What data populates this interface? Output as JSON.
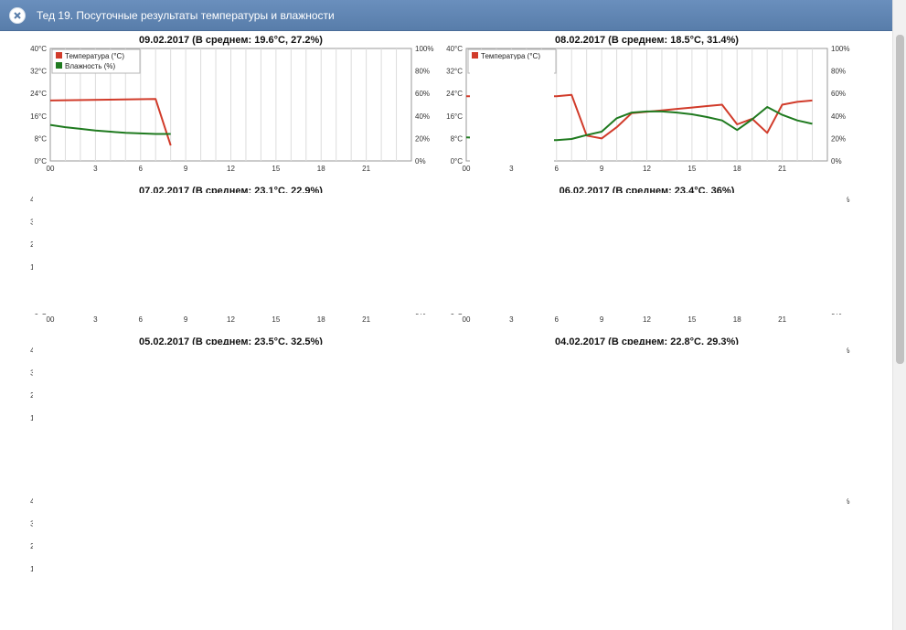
{
  "window": {
    "title": "Тед 19. Посуточные результаты температуры и влажности"
  },
  "colors": {
    "temperature": "#d13b2a",
    "humidity": "#1f7a1f",
    "titlebar": "#6a8fbd"
  },
  "legend": {
    "temperature_label": "Температура (°C)",
    "humidity_label": "Влажность (%)"
  },
  "axes": {
    "x_ticks": [
      "00",
      "3",
      "6",
      "9",
      "12",
      "15",
      "18",
      "21"
    ],
    "y_left_ticks": [
      "0°C",
      "8°C",
      "16°C",
      "24°C",
      "32°C",
      "40°C"
    ],
    "y_right_ticks": [
      "0%",
      "20%",
      "40%",
      "60%",
      "80%",
      "100%"
    ]
  },
  "chart_data": [
    {
      "type": "line",
      "title": "09.02.2017 (В среднем: 19.6°C, 27.2%)",
      "xlim": [
        0,
        24
      ],
      "ylim": [
        0,
        40
      ],
      "y2lim": [
        0,
        100
      ],
      "grid": true,
      "legend_position": "top-left",
      "series": [
        {
          "name": "Температура (°C)",
          "axis": "left",
          "x": [
            0,
            7,
            8
          ],
          "y": [
            21.5,
            22,
            5.5
          ]
        },
        {
          "name": "Влажность (%)",
          "axis": "right",
          "x": [
            0,
            1,
            2,
            3,
            4,
            5,
            6,
            7,
            8
          ],
          "y": [
            32,
            30,
            28.5,
            27,
            26,
            25,
            24.5,
            24,
            24
          ]
        }
      ]
    },
    {
      "type": "line",
      "title": "08.02.2017 (В среднем: 18.5°C, 31.4%)",
      "xlim": [
        0,
        24
      ],
      "ylim": [
        0,
        40
      ],
      "y2lim": [
        0,
        100
      ],
      "grid": true,
      "legend_position": "top-left",
      "series": [
        {
          "name": "Температура (°C)",
          "axis": "left",
          "x": [
            0,
            1,
            2,
            3,
            4,
            5,
            6,
            7,
            8,
            9,
            10,
            11,
            12,
            13,
            14,
            15,
            16,
            17,
            18,
            19,
            20,
            21,
            22,
            23
          ],
          "y": [
            23,
            23,
            23,
            23,
            23,
            23,
            23,
            23.5,
            9,
            8,
            12,
            17,
            17.5,
            18,
            18.5,
            19,
            19.5,
            20,
            13,
            15,
            10,
            20,
            21,
            21.5
          ]
        },
        {
          "name": "Влажность (%)",
          "axis": "right",
          "x": [
            0,
            1,
            2,
            3,
            4,
            5,
            6,
            7,
            8,
            9,
            10,
            11,
            12,
            13,
            14,
            15,
            16,
            17,
            18,
            19,
            20,
            21,
            22,
            23
          ],
          "y": [
            21,
            20.5,
            20,
            19.5,
            19,
            18.5,
            18.5,
            19.5,
            23,
            26,
            38,
            43,
            44,
            44,
            43,
            41.5,
            39,
            36,
            27.5,
            37,
            48,
            41,
            36,
            33
          ]
        }
      ]
    },
    {
      "type": "line",
      "title": "07.02.2017 (В среднем: 23.1°C, 22.9%)",
      "xlim": [
        0,
        24
      ],
      "ylim": [
        0,
        40
      ],
      "y2lim": [
        0,
        100
      ],
      "series": []
    },
    {
      "type": "line",
      "title": "06.02.2017 (В среднем: 23.4°C, 36%)",
      "xlim": [
        0,
        24
      ],
      "ylim": [
        0,
        40
      ],
      "y2lim": [
        0,
        100
      ],
      "series": []
    },
    {
      "type": "line",
      "title": "05.02.2017 (В среднем: 23.5°C, 32.5%)",
      "xlim": [
        0,
        24
      ],
      "ylim": [
        0,
        40
      ],
      "y2lim": [
        0,
        100
      ],
      "series": []
    },
    {
      "type": "line",
      "title": "04.02.2017 (В среднем: 22.8°C, 29.3%)",
      "xlim": [
        0,
        24
      ],
      "ylim": [
        0,
        40
      ],
      "y2lim": [
        0,
        100
      ],
      "series": []
    },
    {
      "type": "line",
      "title": "",
      "xlim": [
        0,
        24
      ],
      "ylim": [
        0,
        40
      ],
      "y2lim": [
        0,
        100
      ],
      "series": []
    },
    {
      "type": "line",
      "title": "",
      "xlim": [
        0,
        24
      ],
      "ylim": [
        0,
        40
      ],
      "y2lim": [
        0,
        100
      ],
      "series": []
    }
  ]
}
